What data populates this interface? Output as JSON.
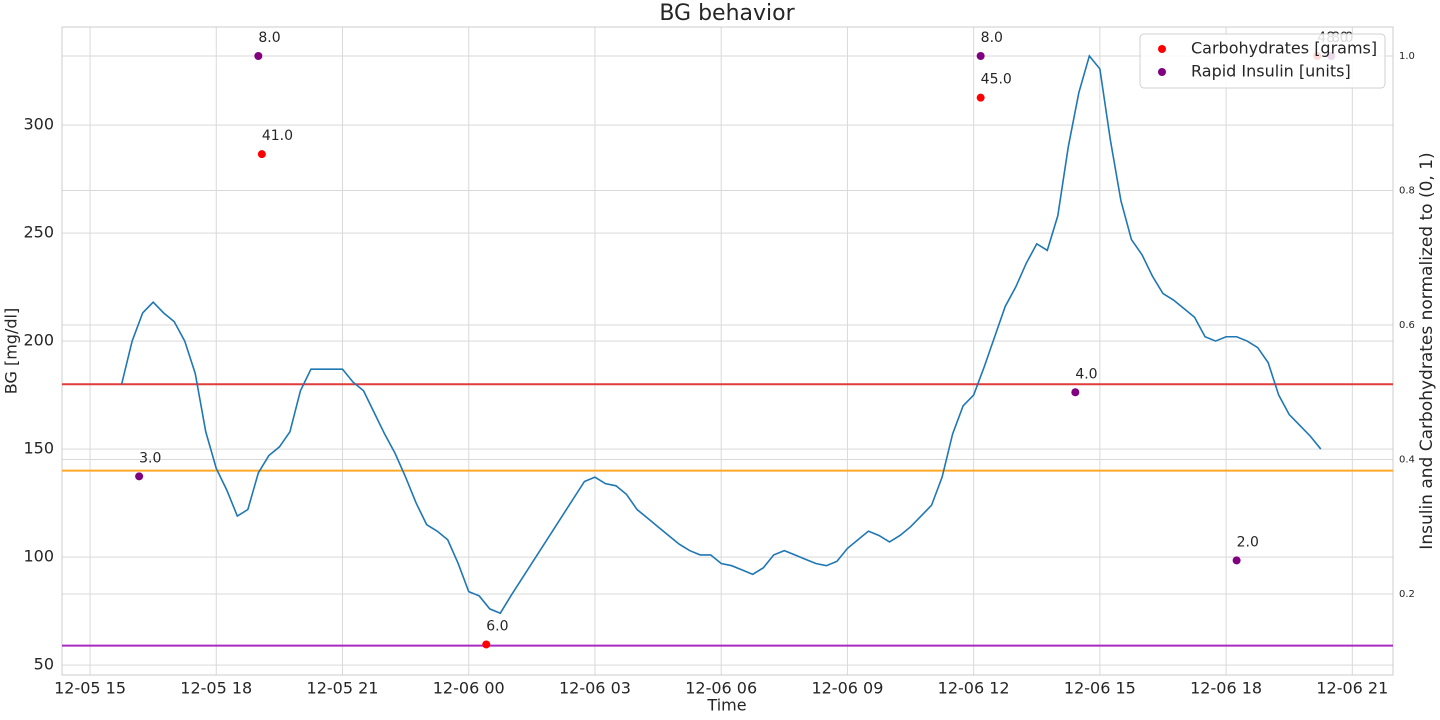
{
  "chart_data": {
    "type": "line",
    "title": "BG behavior",
    "xlabel": "Time",
    "ylabel": "BG [mg/dl]",
    "y2label": "Insulin and Carbohydrates normalized to (0, 1)",
    "color": "#1f77b4",
    "x": [
      "12-05 15:45",
      "12-05 16:00",
      "12-05 16:15",
      "12-05 16:30",
      "12-05 16:45",
      "12-05 17:00",
      "12-05 17:15",
      "12-05 17:30",
      "12-05 17:45",
      "12-05 18:00",
      "12-05 18:15",
      "12-05 18:30",
      "12-05 18:45",
      "12-05 19:00",
      "12-05 19:15",
      "12-05 19:30",
      "12-05 19:45",
      "12-05 20:00",
      "12-05 20:15",
      "12-05 20:30",
      "12-05 20:45",
      "12-05 21:00",
      "12-05 21:15",
      "12-05 21:30",
      "12-05 21:45",
      "12-05 22:00",
      "12-05 22:15",
      "12-05 22:30",
      "12-05 22:45",
      "12-05 23:00",
      "12-05 23:15",
      "12-05 23:30",
      "12-05 23:45",
      "12-06 00:00",
      "12-06 00:15",
      "12-06 00:30",
      "12-06 00:45",
      "12-06 01:00",
      "12-06 02:45",
      "12-06 03:00",
      "12-06 03:15",
      "12-06 03:30",
      "12-06 03:45",
      "12-06 04:00",
      "12-06 04:15",
      "12-06 04:30",
      "12-06 04:45",
      "12-06 05:00",
      "12-06 05:15",
      "12-06 05:30",
      "12-06 05:45",
      "12-06 06:00",
      "12-06 06:15",
      "12-06 06:30",
      "12-06 06:45",
      "12-06 07:00",
      "12-06 07:15",
      "12-06 07:30",
      "12-06 07:45",
      "12-06 08:00",
      "12-06 08:15",
      "12-06 08:30",
      "12-06 08:45",
      "12-06 09:00",
      "12-06 09:15",
      "12-06 09:30",
      "12-06 09:45",
      "12-06 10:00",
      "12-06 10:15",
      "12-06 10:30",
      "12-06 10:45",
      "12-06 11:00",
      "12-06 11:15",
      "12-06 11:30",
      "12-06 11:45",
      "12-06 12:00",
      "12-06 12:15",
      "12-06 12:30",
      "12-06 12:45",
      "12-06 13:00",
      "12-06 13:15",
      "12-06 13:30",
      "12-06 13:45",
      "12-06 14:00",
      "12-06 14:15",
      "12-06 14:30",
      "12-06 14:45",
      "12-06 15:00",
      "12-06 15:15",
      "12-06 15:30",
      "12-06 15:45",
      "12-06 16:00",
      "12-06 16:15",
      "12-06 16:30",
      "12-06 16:45",
      "12-06 17:00",
      "12-06 17:15",
      "12-06 17:30",
      "12-06 17:45",
      "12-06 18:00",
      "12-06 18:15",
      "12-06 18:30",
      "12-06 18:45",
      "12-06 19:00",
      "12-06 19:15",
      "12-06 19:30",
      "12-06 19:45",
      "12-06 20:00",
      "12-06 20:15"
    ],
    "values": [
      180,
      200,
      213,
      218,
      213,
      209,
      200,
      185,
      158,
      141,
      131,
      119,
      122,
      139,
      147,
      151,
      158,
      177,
      187,
      187,
      187,
      187,
      181,
      177,
      167,
      157,
      148,
      137,
      125,
      115,
      112,
      108,
      97,
      84,
      82,
      76,
      74,
      82,
      135,
      137,
      134,
      133,
      129,
      122,
      118,
      114,
      110,
      106,
      103,
      101,
      101,
      97,
      96,
      94,
      92,
      95,
      101,
      103,
      101,
      99,
      97,
      96,
      98,
      104,
      108,
      112,
      110,
      107,
      110,
      114,
      119,
      124,
      137,
      157,
      170,
      175,
      188,
      202,
      216,
      225,
      236,
      245,
      242,
      258,
      290,
      315,
      332,
      326,
      293,
      265,
      247,
      240,
      230,
      222,
      219,
      215,
      211,
      202,
      200,
      202,
      202,
      200,
      197,
      190,
      175,
      166,
      161,
      156,
      150
    ],
    "series": [
      {
        "name": "Carbohydrates [grams]",
        "type": "scatter",
        "color": "red",
        "axis": "y2",
        "x": [
          "12-05 19:05",
          "12-06 00:25",
          "12-06 12:10",
          "12-06 20:10"
        ],
        "values": [
          0.854,
          0.125,
          0.938,
          1.0
        ],
        "annotations": [
          "41.0",
          "6.0",
          "45.0",
          "48.0"
        ]
      },
      {
        "name": "Rapid Insulin [units]",
        "type": "scatter",
        "color": "purple",
        "axis": "y2",
        "x": [
          "12-05 16:10",
          "12-05 19:00",
          "12-06 12:10",
          "12-06 14:25",
          "12-06 18:15",
          "12-06 20:30"
        ],
        "values": [
          0.375,
          1.0,
          1.0,
          0.5,
          0.25,
          1.0
        ],
        "annotations": [
          "3.0",
          "8.0",
          "8.0",
          "4.0",
          "2.0",
          "8.0"
        ]
      }
    ],
    "hlines": [
      {
        "y": 180,
        "color": "#e03c3c"
      },
      {
        "y": 140,
        "color": "#ffa726"
      },
      {
        "y": 59,
        "color": "#a92bbf"
      }
    ],
    "xlim": [
      "12-05 14:20",
      "12-06 21:58"
    ],
    "xticks": [
      {
        "value": "12-05 15:00",
        "label": "12-05 15"
      },
      {
        "value": "12-05 18:00",
        "label": "12-05 18"
      },
      {
        "value": "12-05 21:00",
        "label": "12-05 21"
      },
      {
        "value": "12-06 00:00",
        "label": "12-06 00"
      },
      {
        "value": "12-06 03:00",
        "label": "12-06 03"
      },
      {
        "value": "12-06 06:00",
        "label": "12-06 06"
      },
      {
        "value": "12-06 09:00",
        "label": "12-06 09"
      },
      {
        "value": "12-06 12:00",
        "label": "12-06 12"
      },
      {
        "value": "12-06 15:00",
        "label": "12-06 15"
      },
      {
        "value": "12-06 18:00",
        "label": "12-06 18"
      },
      {
        "value": "12-06 21:00",
        "label": "12-06 21"
      }
    ],
    "ylim": [
      45.4,
      345.4
    ],
    "yticks": [
      50,
      100,
      150,
      200,
      250,
      300
    ],
    "y2lim": [
      0.0796,
      1.0431
    ],
    "y2ticks": [
      0.2,
      0.4,
      0.6,
      0.8,
      {
        "value": 1,
        "label": "1.0"
      }
    ],
    "grid": true,
    "legend": "upper right"
  }
}
